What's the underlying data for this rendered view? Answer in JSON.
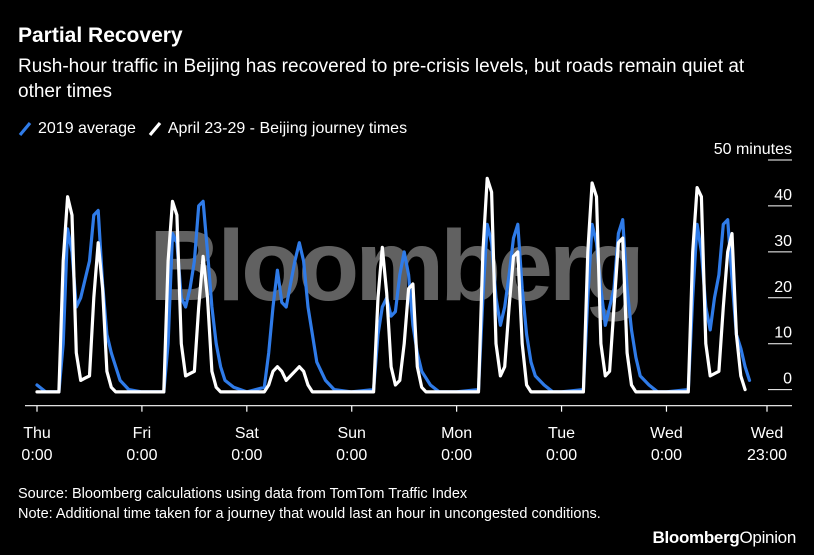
{
  "header": {
    "title": "Partial Recovery",
    "subtitle": "Rush-hour traffic in Beijing has recovered to pre-crisis levels, but roads remain quiet at other times"
  },
  "footer": {
    "source": "Source: Bloomberg calculations using data from TomTom Traffic Index",
    "note": "Note: Additional time taken for a journey that would last an hour in uncongested conditions.",
    "brand_main": "Bloomberg",
    "brand_sub": "Opinion"
  },
  "watermark": "Bloomberg",
  "colors": {
    "background": "#000000",
    "series_2019": "#2f7be8",
    "series_april": "#ffffff",
    "text": "#ffffff",
    "grid": "#ffffff"
  },
  "chart_data": {
    "type": "line",
    "title": "Partial Recovery",
    "subtitle": "Rush-hour traffic in Beijing has recovered to pre-crisis levels, but roads remain quiet at other times",
    "ylabel": "50 minutes",
    "ylim": [
      -4,
      50
    ],
    "yticks": [
      0,
      10,
      20,
      30,
      40,
      50
    ],
    "y_tick_labels": [
      "0",
      "10",
      "20",
      "30",
      "40",
      "50 minutes"
    ],
    "xlim": [
      0,
      167
    ],
    "x_unit": "hours from Thu 0:00",
    "xticks": [
      {
        "x": 0,
        "label": [
          "Thu",
          "0:00"
        ]
      },
      {
        "x": 24,
        "label": [
          "Fri",
          "0:00"
        ]
      },
      {
        "x": 48,
        "label": [
          "Sat",
          "0:00"
        ]
      },
      {
        "x": 72,
        "label": [
          "Sun",
          "0:00"
        ]
      },
      {
        "x": 96,
        "label": [
          "Mon",
          "0:00"
        ]
      },
      {
        "x": 120,
        "label": [
          "Tue",
          "0:00"
        ]
      },
      {
        "x": 144,
        "label": [
          "Wed",
          "0:00"
        ]
      },
      {
        "x": 167,
        "label": [
          "Wed",
          "23:00"
        ]
      }
    ],
    "grid": true,
    "legend_position": "top-left",
    "series": [
      {
        "name": "2019 average",
        "color": "#2f7be8",
        "points": [
          [
            0,
            1
          ],
          [
            2,
            -0.5
          ],
          [
            5,
            -0.5
          ],
          [
            6,
            10
          ],
          [
            7,
            35
          ],
          [
            8,
            30
          ],
          [
            9,
            18
          ],
          [
            10,
            20
          ],
          [
            11,
            24
          ],
          [
            12,
            28
          ],
          [
            13,
            38
          ],
          [
            14,
            39
          ],
          [
            15,
            23
          ],
          [
            16,
            12
          ],
          [
            17,
            8
          ],
          [
            18,
            5
          ],
          [
            19,
            2
          ],
          [
            21,
            0
          ],
          [
            24,
            -0.5
          ],
          [
            29,
            -0.5
          ],
          [
            30,
            10
          ],
          [
            31,
            34
          ],
          [
            32,
            32
          ],
          [
            33,
            20
          ],
          [
            34,
            18
          ],
          [
            35,
            22
          ],
          [
            36,
            28
          ],
          [
            37,
            40
          ],
          [
            38,
            41
          ],
          [
            39,
            30
          ],
          [
            40,
            18
          ],
          [
            41,
            10
          ],
          [
            42,
            5
          ],
          [
            43,
            2
          ],
          [
            45,
            0.5
          ],
          [
            48,
            -0.5
          ],
          [
            52,
            0.5
          ],
          [
            53,
            8
          ],
          [
            54,
            18
          ],
          [
            55,
            26
          ],
          [
            56,
            19
          ],
          [
            57,
            18
          ],
          [
            58,
            23
          ],
          [
            59,
            28
          ],
          [
            60,
            32
          ],
          [
            61,
            28
          ],
          [
            62,
            18
          ],
          [
            63,
            12
          ],
          [
            64,
            6
          ],
          [
            66,
            2
          ],
          [
            68,
            0
          ],
          [
            72,
            -0.5
          ],
          [
            77,
            0
          ],
          [
            78,
            12
          ],
          [
            79,
            18
          ],
          [
            80,
            20
          ],
          [
            81,
            16
          ],
          [
            82,
            17
          ],
          [
            83,
            25
          ],
          [
            84,
            30
          ],
          [
            85,
            25
          ],
          [
            86,
            14
          ],
          [
            87,
            8
          ],
          [
            88,
            4
          ],
          [
            90,
            1
          ],
          [
            92,
            -0.5
          ],
          [
            96,
            -0.5
          ],
          [
            101,
            0
          ],
          [
            102,
            20
          ],
          [
            103,
            36
          ],
          [
            104,
            32
          ],
          [
            105,
            20
          ],
          [
            106,
            14
          ],
          [
            107,
            18
          ],
          [
            108,
            25
          ],
          [
            109,
            33
          ],
          [
            110,
            36
          ],
          [
            111,
            22
          ],
          [
            112,
            12
          ],
          [
            113,
            6
          ],
          [
            114,
            3
          ],
          [
            116,
            1
          ],
          [
            118,
            -0.5
          ],
          [
            120,
            -0.5
          ],
          [
            125,
            0
          ],
          [
            126,
            20
          ],
          [
            127,
            36
          ],
          [
            128,
            32
          ],
          [
            129,
            22
          ],
          [
            130,
            14
          ],
          [
            131,
            18
          ],
          [
            132,
            22
          ],
          [
            133,
            34
          ],
          [
            134,
            37
          ],
          [
            135,
            22
          ],
          [
            136,
            13
          ],
          [
            137,
            7
          ],
          [
            138,
            3
          ],
          [
            140,
            1
          ],
          [
            142,
            -0.5
          ],
          [
            144,
            -0.5
          ],
          [
            149,
            0
          ],
          [
            150,
            20
          ],
          [
            151,
            36
          ],
          [
            152,
            30
          ],
          [
            153,
            18
          ],
          [
            154,
            13
          ],
          [
            155,
            20
          ],
          [
            156,
            25
          ],
          [
            157,
            36
          ],
          [
            158,
            37
          ],
          [
            159,
            24
          ],
          [
            160,
            12
          ],
          [
            161,
            9
          ],
          [
            162,
            5
          ],
          [
            163,
            2
          ]
        ]
      },
      {
        "name": "April 23-29 - Beijing journey times",
        "color": "#ffffff",
        "points": [
          [
            0,
            -0.5
          ],
          [
            5,
            -0.5
          ],
          [
            6,
            28
          ],
          [
            7,
            42
          ],
          [
            8,
            38
          ],
          [
            9,
            8
          ],
          [
            10,
            2
          ],
          [
            11,
            2.5
          ],
          [
            12,
            3
          ],
          [
            13,
            20
          ],
          [
            14,
            32
          ],
          [
            15,
            22
          ],
          [
            16,
            4
          ],
          [
            17,
            0.5
          ],
          [
            18,
            -0.5
          ],
          [
            24,
            -0.5
          ],
          [
            29,
            -0.5
          ],
          [
            30,
            28
          ],
          [
            31,
            41
          ],
          [
            32,
            38
          ],
          [
            33,
            10
          ],
          [
            34,
            3
          ],
          [
            35,
            3.5
          ],
          [
            36,
            4
          ],
          [
            37,
            18
          ],
          [
            38,
            29
          ],
          [
            39,
            20
          ],
          [
            40,
            4
          ],
          [
            41,
            0.5
          ],
          [
            42,
            -0.5
          ],
          [
            48,
            -0.5
          ],
          [
            52,
            -0.5
          ],
          [
            53,
            1
          ],
          [
            54,
            4
          ],
          [
            55,
            5
          ],
          [
            56,
            4
          ],
          [
            57,
            2
          ],
          [
            58,
            3
          ],
          [
            59,
            4
          ],
          [
            60,
            5
          ],
          [
            61,
            4
          ],
          [
            62,
            1
          ],
          [
            63,
            -0.5
          ],
          [
            72,
            -0.5
          ],
          [
            77,
            -0.5
          ],
          [
            78,
            20
          ],
          [
            79,
            31
          ],
          [
            80,
            21
          ],
          [
            81,
            5
          ],
          [
            82,
            1
          ],
          [
            83,
            2
          ],
          [
            84,
            10
          ],
          [
            85,
            22
          ],
          [
            86,
            23
          ],
          [
            87,
            5
          ],
          [
            88,
            0.5
          ],
          [
            89,
            -0.5
          ],
          [
            96,
            -0.5
          ],
          [
            101,
            -0.5
          ],
          [
            102,
            30
          ],
          [
            103,
            46
          ],
          [
            104,
            43
          ],
          [
            105,
            10
          ],
          [
            106,
            3
          ],
          [
            107,
            5
          ],
          [
            108,
            18
          ],
          [
            109,
            29
          ],
          [
            110,
            30
          ],
          [
            111,
            10
          ],
          [
            112,
            1
          ],
          [
            113,
            -0.5
          ],
          [
            120,
            -0.5
          ],
          [
            125,
            -0.5
          ],
          [
            126,
            30
          ],
          [
            127,
            45
          ],
          [
            128,
            42
          ],
          [
            129,
            10
          ],
          [
            130,
            3
          ],
          [
            131,
            4
          ],
          [
            132,
            18
          ],
          [
            133,
            32
          ],
          [
            134,
            33
          ],
          [
            135,
            8
          ],
          [
            136,
            1
          ],
          [
            137,
            -0.5
          ],
          [
            144,
            -0.5
          ],
          [
            149,
            -0.5
          ],
          [
            150,
            30
          ],
          [
            151,
            44
          ],
          [
            152,
            42
          ],
          [
            153,
            10
          ],
          [
            154,
            3
          ],
          [
            155,
            3.5
          ],
          [
            156,
            4
          ],
          [
            157,
            18
          ],
          [
            158,
            30
          ],
          [
            159,
            34
          ],
          [
            160,
            12
          ],
          [
            161,
            3
          ],
          [
            162,
            0
          ]
        ]
      }
    ]
  }
}
